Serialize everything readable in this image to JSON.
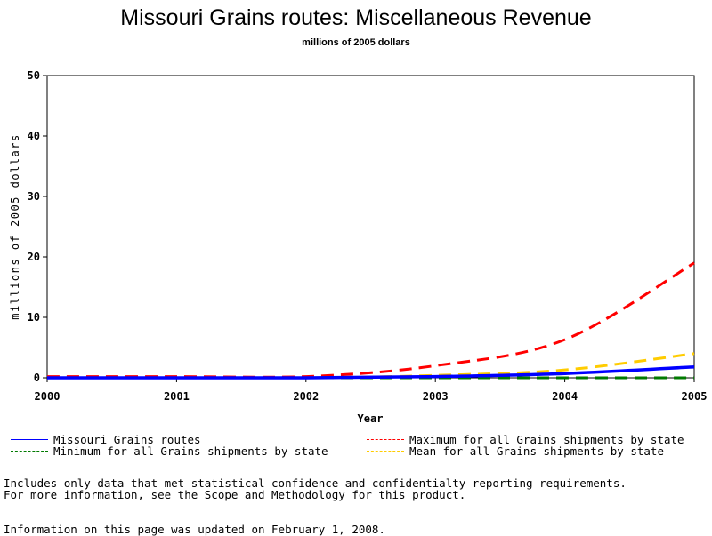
{
  "chart_data": {
    "type": "line",
    "title": "Missouri Grains routes: Miscellaneous Revenue",
    "subtitle": "millions of 2005 dollars",
    "xlabel": "Year",
    "ylabel": "millions of 2005 dollars",
    "x": [
      2000,
      2001,
      2002,
      2003,
      2004,
      2005
    ],
    "xlim": [
      2000,
      2005
    ],
    "ylim": [
      0,
      50
    ],
    "yticks": [
      0,
      10,
      20,
      30,
      40,
      50
    ],
    "grid": false,
    "legend_position": "bottom",
    "series": [
      {
        "name": "Missouri Grains routes",
        "color": "#0000ff",
        "style": "solid",
        "values": [
          0,
          0,
          0,
          0.2,
          0.7,
          1.8
        ]
      },
      {
        "name": "Minimum for all Grains shipments by state",
        "color": "#007a00",
        "style": "dashed",
        "values": [
          0,
          0,
          0,
          0,
          0,
          0
        ]
      },
      {
        "name": "Maximum for all Grains shipments by state",
        "color": "#ff0000",
        "style": "dashed",
        "values": [
          0.2,
          0.2,
          0.2,
          2.0,
          6.3,
          19.0
        ]
      },
      {
        "name": "Mean for all Grains shipments by state",
        "color": "#ffcc00",
        "style": "dashed",
        "values": [
          0,
          0,
          0,
          0.4,
          1.3,
          4.0
        ]
      }
    ]
  },
  "legend": [
    {
      "label": "Missouri Grains routes",
      "color": "#0000ff",
      "style": "solid"
    },
    {
      "label": "Maximum for all Grains shipments by state",
      "color": "#ff0000",
      "style": "dashed"
    },
    {
      "label": "Minimum for all Grains shipments by state",
      "color": "#007a00",
      "style": "dashed"
    },
    {
      "label": "Mean for all Grains shipments by state",
      "color": "#ffcc00",
      "style": "dashed"
    }
  ],
  "notes": {
    "line1": "Includes only data that met statistical confidence and confidentialty reporting requirements.",
    "line2": "For more information, see the Scope and Methodology for this product.",
    "updated": "Information on this page was updated on February 1, 2008."
  }
}
